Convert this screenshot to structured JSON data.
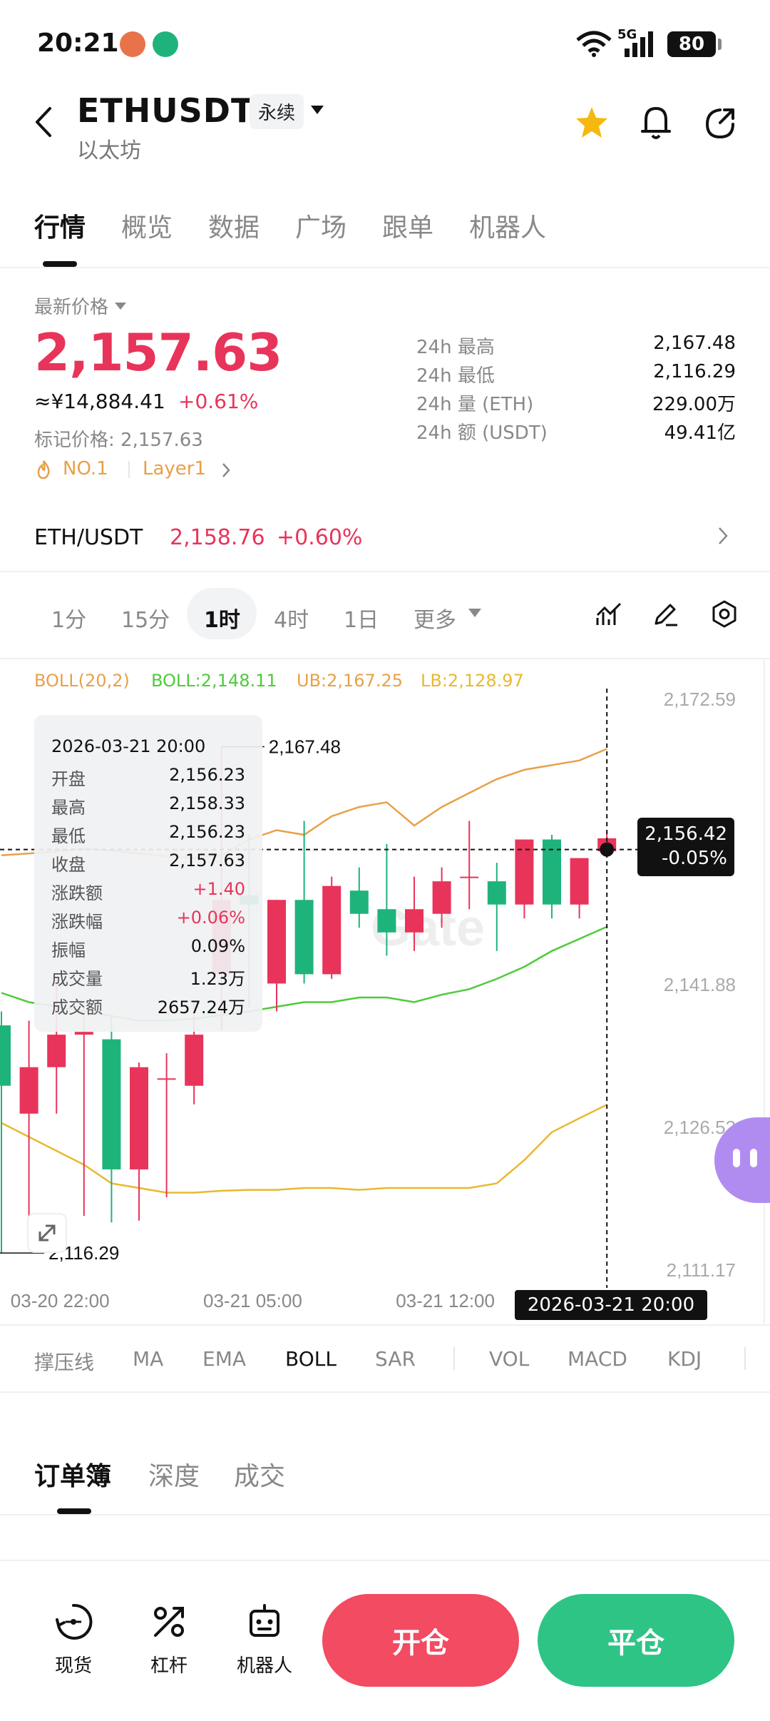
{
  "status_bar": {
    "time": "20:21",
    "network": "5G",
    "battery": "80"
  },
  "header": {
    "pair": "ETHUSDT",
    "contract_type": "永续",
    "subtitle": "以太坊"
  },
  "tabs": [
    {
      "label": "行情"
    },
    {
      "label": "概览"
    },
    {
      "label": "数据"
    },
    {
      "label": "广场"
    },
    {
      "label": "跟单"
    },
    {
      "label": "机器人"
    }
  ],
  "ticker": {
    "price_label": "最新价格",
    "last_price": "2,157.63",
    "cny_price": "≈¥14,884.41",
    "change_pct": "+0.61%",
    "mark_price": "标记价格: 2,157.63",
    "rank_tag": "NO.1",
    "category_tag": "Layer1",
    "stats": [
      {
        "label": "24h  最高",
        "value": "2,167.48"
      },
      {
        "label": "24h  最低",
        "value": "2,116.29"
      },
      {
        "label": "24h  量 (ETH)",
        "value": "229.00万"
      },
      {
        "label": "24h  额 (USDT)",
        "value": "49.41亿"
      }
    ]
  },
  "spot": {
    "pair": "ETH/USDT",
    "price": "2,158.76",
    "change": "+0.60%"
  },
  "intervals": [
    {
      "label": "1分"
    },
    {
      "label": "15分"
    },
    {
      "label": "1时"
    },
    {
      "label": "4时"
    },
    {
      "label": "1日"
    },
    {
      "label": "更多"
    }
  ],
  "boll_legend": {
    "name": "BOLL(20,2)",
    "mid": "BOLL:2,148.11",
    "ub": "UB:2,167.25",
    "lb": "LB:2,128.97"
  },
  "tooltip": {
    "time": "2026-03-21 20:00",
    "rows": [
      {
        "label": "开盘",
        "value": "2,156.23"
      },
      {
        "label": "最高",
        "value": "2,158.33"
      },
      {
        "label": "最低",
        "value": "2,156.23"
      },
      {
        "label": "收盘",
        "value": "2,157.63"
      },
      {
        "label": "涨跌额",
        "value": "+1.40"
      },
      {
        "label": "涨跌幅",
        "value": "+0.06%"
      },
      {
        "label": "振幅",
        "value": "0.09%"
      },
      {
        "label": "成交量",
        "value": "1.23万"
      },
      {
        "label": "成交额",
        "value": "2657.24万"
      }
    ]
  },
  "price_badge": {
    "price": "2,156.42",
    "change": "-0.05%"
  },
  "crosshair_time": "2026-03-21 20:00",
  "watermark": "Gate",
  "indicators": [
    {
      "label": "撑压线"
    },
    {
      "label": "MA"
    },
    {
      "label": "EMA"
    },
    {
      "label": "BOLL"
    },
    {
      "label": "SAR"
    },
    {
      "label": "VOL"
    },
    {
      "label": "MACD"
    },
    {
      "label": "KDJ"
    }
  ],
  "orderbook_tabs": [
    {
      "label": "订单簿"
    },
    {
      "label": "深度"
    },
    {
      "label": "成交"
    }
  ],
  "bottom_nav": {
    "spot": "现货",
    "leverage": "杠杆",
    "bot": "机器人",
    "open": "开仓",
    "close": "平仓"
  },
  "colors": {
    "up": "#e8345a",
    "down": "#1fb37c",
    "ub_line": "#e8a04a",
    "mid_line": "#4ecb3a",
    "lb_line": "#e8b930",
    "open_button": "#f24b62",
    "close_button": "#2ec486"
  },
  "chart_data": {
    "type": "candlestick",
    "interval": "1时",
    "x_tick_labels": [
      "03-20 22:00",
      "03-21 05:00",
      "03-21 12:00"
    ],
    "y_tick_labels": [
      "2,172.59",
      "2,141.88",
      "2,126.52",
      "2,111.17"
    ],
    "ylim": [
      2111.17,
      2172.59
    ],
    "high_marker": "2,167.48",
    "low_marker": "2,116.29",
    "candles": [
      {
        "o": 2137.5,
        "h": 2139.0,
        "l": 2113.0,
        "c": 2131.0
      },
      {
        "o": 2128.0,
        "h": 2138.0,
        "l": 2114.0,
        "c": 2133.0
      },
      {
        "o": 2133.0,
        "h": 2142.5,
        "l": 2128.0,
        "c": 2136.5
      },
      {
        "o": 2136.5,
        "h": 2139.5,
        "l": 2117.0,
        "c": 2136.8
      },
      {
        "o": 2136.0,
        "h": 2138.5,
        "l": 2116.29,
        "c": 2122.0
      },
      {
        "o": 2122.0,
        "h": 2133.5,
        "l": 2116.5,
        "c": 2133.0
      },
      {
        "o": 2131.8,
        "h": 2134.5,
        "l": 2119.0,
        "c": 2131.8
      },
      {
        "o": 2131.0,
        "h": 2140.0,
        "l": 2129.0,
        "c": 2136.5
      },
      {
        "o": 2143.0,
        "h": 2167.48,
        "l": 2137.0,
        "c": 2151.0
      },
      {
        "o": 2151.5,
        "h": 2158.0,
        "l": 2139.5,
        "c": 2150.5
      },
      {
        "o": 2142.0,
        "h": 2151.0,
        "l": 2139.0,
        "c": 2151.0
      },
      {
        "o": 2151.0,
        "h": 2159.5,
        "l": 2142.0,
        "c": 2143.0
      },
      {
        "o": 2143.0,
        "h": 2153.5,
        "l": 2142.5,
        "c": 2152.5
      },
      {
        "o": 2152.0,
        "h": 2154.5,
        "l": 2148.0,
        "c": 2149.5
      },
      {
        "o": 2150.0,
        "h": 2157.0,
        "l": 2145.0,
        "c": 2147.5
      },
      {
        "o": 2147.5,
        "h": 2153.5,
        "l": 2145.5,
        "c": 2150.0
      },
      {
        "o": 2149.5,
        "h": 2154.5,
        "l": 2148.0,
        "c": 2153.0
      },
      {
        "o": 2153.5,
        "h": 2159.5,
        "l": 2150.0,
        "c": 2153.5
      },
      {
        "o": 2153.0,
        "h": 2155.0,
        "l": 2145.5,
        "c": 2150.5
      },
      {
        "o": 2150.5,
        "h": 2157.5,
        "l": 2149.0,
        "c": 2157.5
      },
      {
        "o": 2157.5,
        "h": 2158.0,
        "l": 2149.0,
        "c": 2150.5
      },
      {
        "o": 2150.5,
        "h": 2155.0,
        "l": 2149.0,
        "c": 2155.5
      },
      {
        "o": 2156.23,
        "h": 2158.33,
        "l": 2156.23,
        "c": 2157.63
      }
    ],
    "series": [
      {
        "name": "UB",
        "values": [
          2155.8,
          2156.0,
          2156.2,
          2156.5,
          2156.3,
          2156.0,
          2155.7,
          2155.5,
          2155.8,
          2157.5,
          2158.5,
          2158.0,
          2160.0,
          2161.0,
          2161.5,
          2159.0,
          2161.0,
          2162.5,
          2164.0,
          2165.0,
          2165.5,
          2166.0,
          2167.25
        ]
      },
      {
        "name": "BOLL",
        "values": [
          2141.0,
          2140.0,
          2139.5,
          2139.0,
          2138.5,
          2138.0,
          2138.0,
          2138.2,
          2138.6,
          2139.0,
          2139.5,
          2140.0,
          2140.0,
          2140.5,
          2140.5,
          2140.0,
          2140.8,
          2141.4,
          2142.5,
          2143.8,
          2145.5,
          2146.8,
          2148.11
        ]
      },
      {
        "name": "LB",
        "values": [
          2127.0,
          2125.5,
          2124.0,
          2122.5,
          2120.5,
          2120.0,
          2119.5,
          2119.5,
          2119.7,
          2119.8,
          2119.8,
          2120.0,
          2120.0,
          2119.8,
          2120.0,
          2120.0,
          2120.0,
          2120.0,
          2120.5,
          2123.0,
          2126.0,
          2127.5,
          2128.97
        ]
      }
    ]
  }
}
